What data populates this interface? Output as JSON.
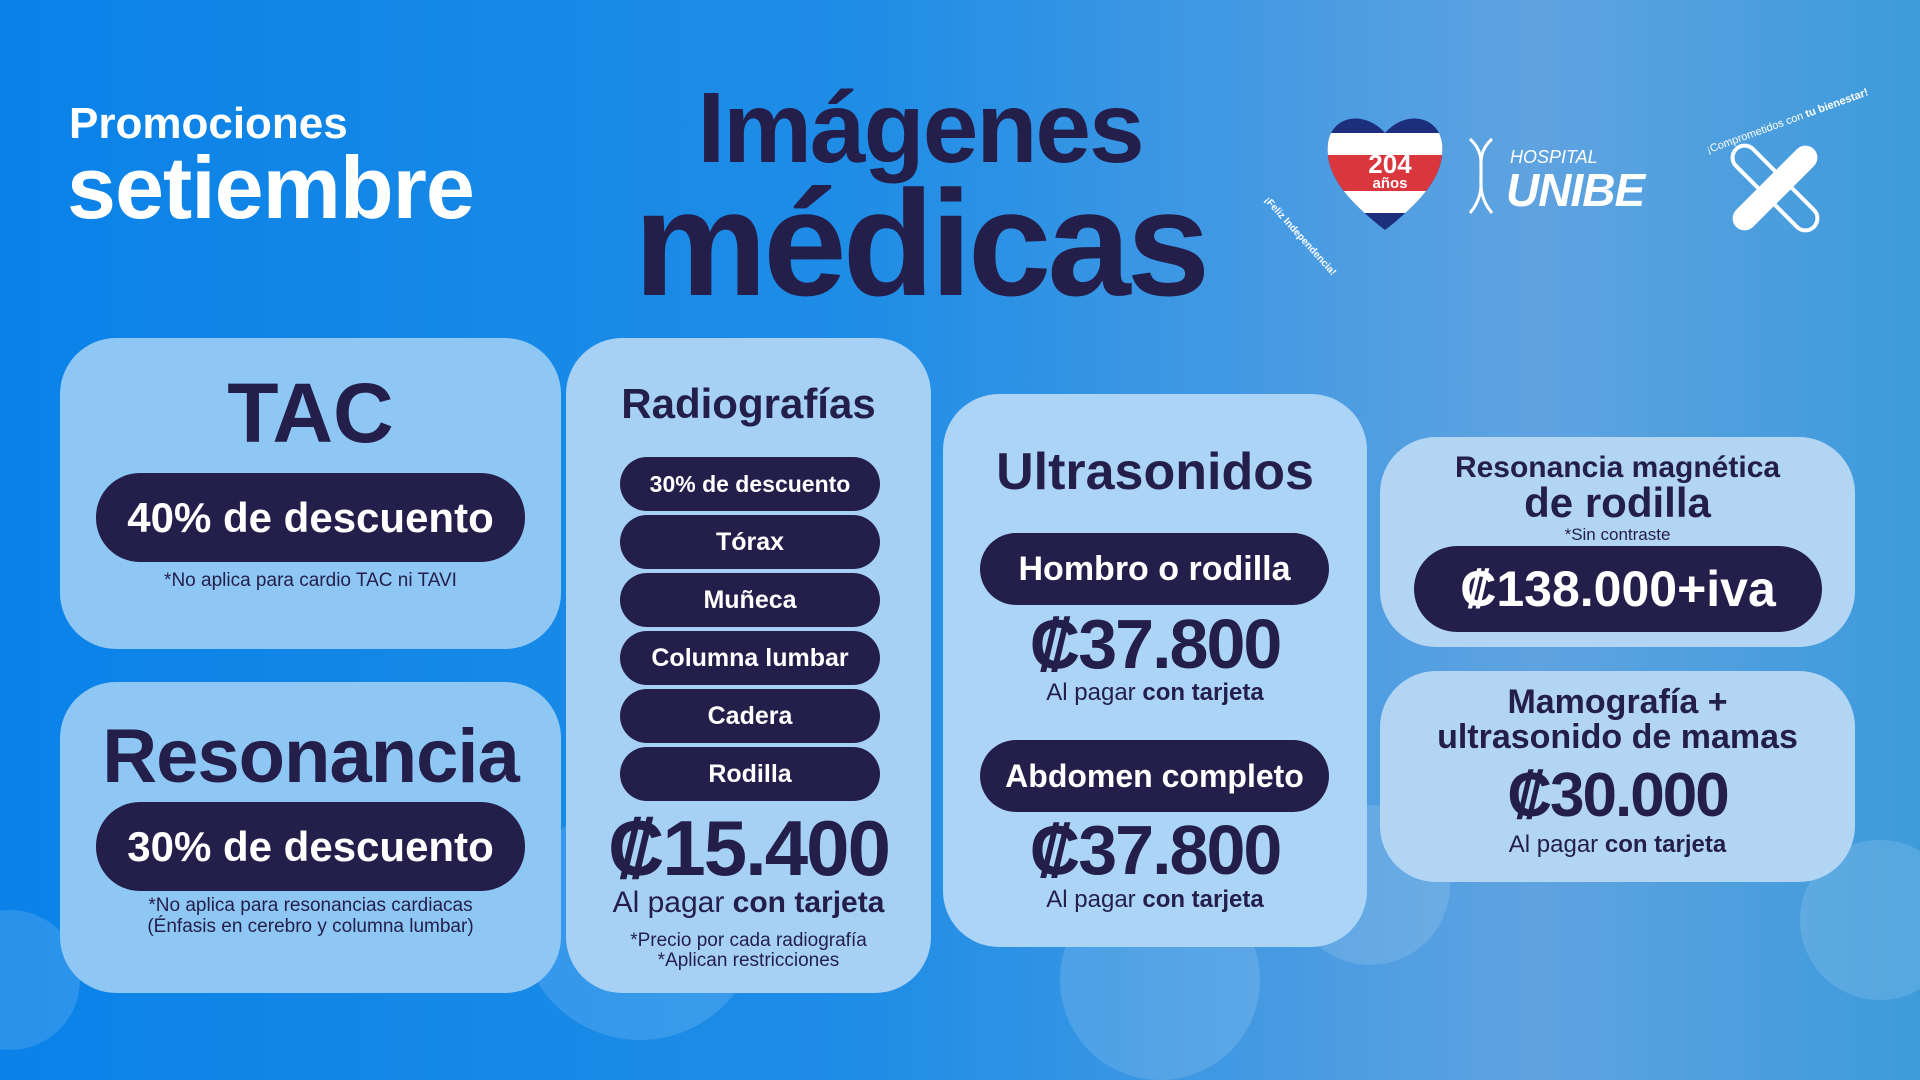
{
  "header": {
    "promo_line1": "Promociones",
    "promo_line2": "setiembre",
    "title_line1": "Imágenes",
    "title_line2": "médicas"
  },
  "logos": {
    "anniversary": {
      "number": "204",
      "unit": "años",
      "tagline": "¡Feliz Independencia!",
      "icon": "costa-rica-flag-heart-icon"
    },
    "hospital": {
      "small": "HOSPITAL",
      "big": "UNIBE",
      "icon": "dna-icon"
    },
    "wellbeing": {
      "tagline_regular": "¡Comprometidos con ",
      "tagline_bold": "tu bienestar!",
      "icon": "bandage-cross-icon"
    }
  },
  "colors": {
    "navy": "#231e4a",
    "background": "#0a82e8",
    "card": "#8ec6f4"
  },
  "tac": {
    "title": "TAC",
    "discount": "40% de descuento",
    "note": "*No aplica para cardio TAC ni TAVI"
  },
  "resonancia": {
    "title": "Resonancia",
    "discount": "30% de descuento",
    "note1": "*No aplica para resonancias cardiacas",
    "note2": "(Énfasis en cerebro y columna lumbar)"
  },
  "radiografias": {
    "title": "Radiografías",
    "items": [
      "30% de descuento",
      "Tórax",
      "Muñeca",
      "Columna lumbar",
      "Cadera",
      "Rodilla"
    ],
    "price": "₡15.400",
    "pay_regular": "Al pagar ",
    "pay_bold": "con tarjeta",
    "note1": "*Precio por cada radiografía",
    "note2": "*Aplican restricciones"
  },
  "ultrasonidos": {
    "title": "Ultrasonidos",
    "items": [
      {
        "label": "Hombro o rodilla",
        "price": "₡37.800",
        "pay_regular": "Al pagar ",
        "pay_bold": "con tarjeta"
      },
      {
        "label": "Abdomen completo",
        "price": "₡37.800",
        "pay_regular": "Al pagar ",
        "pay_bold": "con tarjeta"
      }
    ]
  },
  "rm_rodilla": {
    "title1": "Resonancia magnética",
    "title2": "de rodilla",
    "note": "*Sin contraste",
    "price": "₡138.000+iva"
  },
  "mamografia": {
    "title1": "Mamografía +",
    "title2": "ultrasonido de mamas",
    "price": "₡30.000",
    "pay_regular": "Al pagar ",
    "pay_bold": "con tarjeta"
  }
}
